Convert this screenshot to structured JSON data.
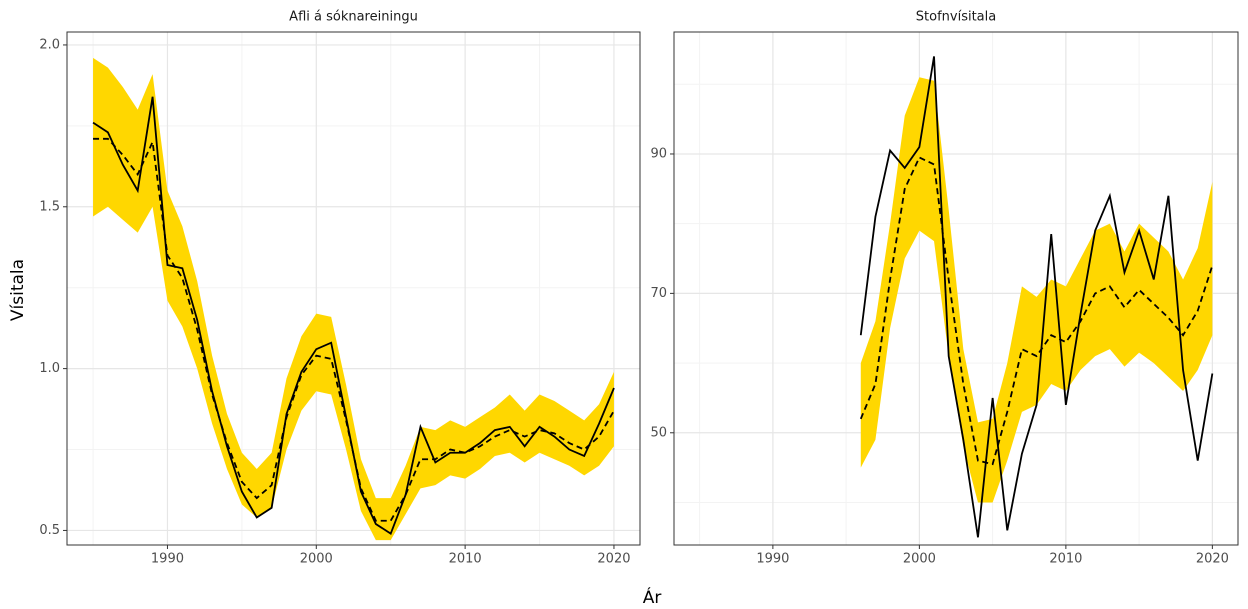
{
  "xlabel": "Ár",
  "ylabel": "Vísitala",
  "chart_data": [
    {
      "type": "line",
      "title": "Afli á sóknareiningu",
      "x": [
        1985,
        1986,
        1987,
        1988,
        1989,
        1990,
        1991,
        1992,
        1993,
        1994,
        1995,
        1996,
        1997,
        1998,
        1999,
        2000,
        2001,
        2002,
        2003,
        2004,
        2005,
        2006,
        2007,
        2008,
        2009,
        2010,
        2011,
        2012,
        2013,
        2014,
        2015,
        2016,
        2017,
        2018,
        2019,
        2020
      ],
      "xlim": [
        1983.25,
        2021.75
      ],
      "xticks": [
        1990,
        2000,
        2010,
        2020
      ],
      "minor_xticks": [
        1985,
        1995,
        2005,
        2015
      ],
      "ylim": [
        0.455,
        2.04
      ],
      "yticks": [
        0.5,
        {
          "value": 1,
          "label": "1.0"
        },
        1.5,
        {
          "value": 2,
          "label": "2.0"
        }
      ],
      "minor_yticks": [
        0.75,
        1.25,
        1.75
      ],
      "grid": true,
      "band": {
        "color": "#ffd700",
        "lower": [
          1.47,
          1.5,
          1.46,
          1.42,
          1.5,
          1.21,
          1.13,
          1.0,
          0.83,
          0.69,
          0.58,
          0.54,
          0.57,
          0.75,
          0.87,
          0.93,
          0.92,
          0.75,
          0.56,
          0.47,
          0.47,
          0.55,
          0.63,
          0.64,
          0.67,
          0.66,
          0.69,
          0.73,
          0.74,
          0.71,
          0.74,
          0.72,
          0.7,
          0.67,
          0.7,
          0.76
        ],
        "upper": [
          1.96,
          1.93,
          1.87,
          1.8,
          1.91,
          1.55,
          1.44,
          1.27,
          1.04,
          0.86,
          0.74,
          0.69,
          0.74,
          0.97,
          1.1,
          1.17,
          1.16,
          0.95,
          0.72,
          0.6,
          0.6,
          0.7,
          0.82,
          0.81,
          0.84,
          0.82,
          0.85,
          0.88,
          0.92,
          0.87,
          0.92,
          0.9,
          0.87,
          0.84,
          0.89,
          0.99
        ]
      },
      "series": [
        {
          "color": "#000000",
          "dashed": false,
          "values": [
            1.76,
            1.73,
            1.63,
            1.55,
            1.84,
            1.32,
            1.31,
            1.15,
            0.93,
            0.76,
            0.62,
            0.54,
            0.57,
            0.86,
            0.99,
            1.06,
            1.08,
            0.85,
            0.62,
            0.52,
            0.49,
            0.61,
            0.82,
            0.71,
            0.74,
            0.74,
            0.77,
            0.81,
            0.82,
            0.76,
            0.82,
            0.79,
            0.75,
            0.73,
            0.83,
            0.94
          ]
        },
        {
          "color": "#000000",
          "dashed": true,
          "values": [
            1.71,
            1.71,
            1.66,
            1.6,
            1.7,
            1.35,
            1.28,
            1.12,
            0.92,
            0.77,
            0.65,
            0.6,
            0.64,
            0.85,
            0.98,
            1.04,
            1.03,
            0.84,
            0.63,
            0.53,
            0.53,
            0.61,
            0.72,
            0.72,
            0.75,
            0.74,
            0.76,
            0.79,
            0.81,
            0.79,
            0.81,
            0.8,
            0.77,
            0.75,
            0.79,
            0.87
          ]
        }
      ]
    },
    {
      "type": "line",
      "title": "Stofnvísitala",
      "x": [
        1996,
        1997,
        1998,
        1999,
        2000,
        2001,
        2002,
        2003,
        2004,
        2005,
        2006,
        2007,
        2008,
        2009,
        2010,
        2011,
        2012,
        2013,
        2014,
        2015,
        2016,
        2017,
        2018,
        2019,
        2020
      ],
      "xlim": [
        1983.25,
        2021.75
      ],
      "xticks": [
        1990,
        2000,
        2010,
        2020
      ],
      "minor_xticks": [
        1985,
        1995,
        2005,
        2015
      ],
      "ylim": [
        33.9,
        107.5
      ],
      "yticks": [
        50,
        70,
        90
      ],
      "minor_yticks": [
        40,
        60,
        80,
        100
      ],
      "grid": true,
      "band": {
        "color": "#ffd700",
        "lower": [
          45,
          49,
          65,
          75,
          79,
          77.5,
          61,
          48,
          40,
          40,
          46,
          53,
          54,
          57,
          56,
          59,
          61,
          62,
          59.5,
          61.5,
          60,
          58,
          56,
          59,
          64
        ],
        "upper": [
          60,
          66,
          80,
          95.5,
          101,
          100.5,
          82,
          62,
          51.5,
          52,
          60,
          71,
          69.5,
          72,
          71,
          75,
          79,
          80,
          76,
          80,
          78,
          76,
          72,
          76.5,
          86
        ]
      },
      "series": [
        {
          "color": "#000000",
          "dashed": false,
          "values": [
            64,
            81,
            90.5,
            88,
            91,
            104,
            61,
            49,
            35,
            55,
            36,
            47,
            54,
            78.5,
            54,
            67,
            79,
            84,
            73,
            79,
            72,
            84,
            59,
            46,
            58.5
          ]
        },
        {
          "color": "#000000",
          "dashed": true,
          "values": [
            52,
            57,
            72,
            85,
            89.5,
            88.5,
            72,
            57,
            46,
            45.5,
            53,
            62,
            61,
            64,
            63,
            66,
            70,
            71,
            68,
            70.5,
            68.5,
            66.5,
            64,
            67.5,
            74
          ]
        }
      ]
    }
  ]
}
